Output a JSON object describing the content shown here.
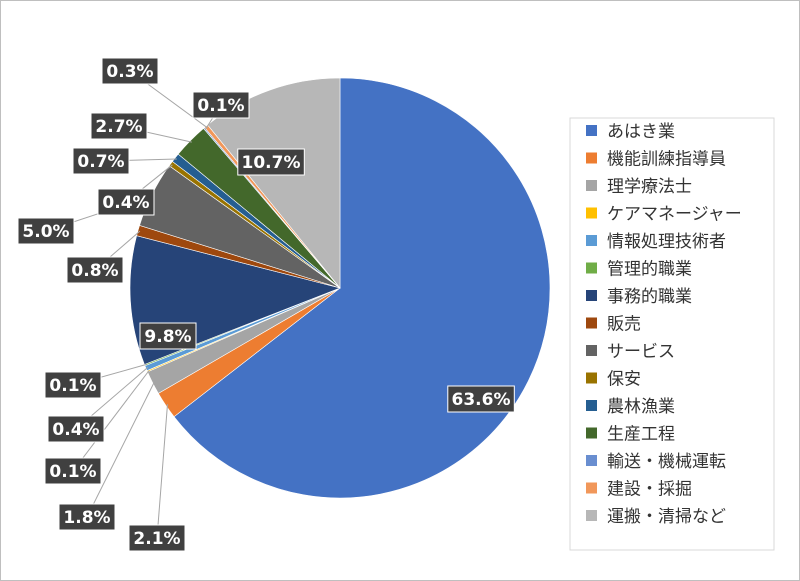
{
  "chart_data": {
    "type": "pie",
    "title": "",
    "legend_position": "right",
    "start_angle_deg": 0,
    "direction": "clockwise",
    "slices": [
      {
        "label": "あはき業",
        "value": 63.6,
        "display": "63.6%",
        "color": "#4472c4"
      },
      {
        "label": "機能訓練指導員",
        "value": 2.1,
        "display": "2.1%",
        "color": "#ed7d31"
      },
      {
        "label": "理学療法士",
        "value": 1.8,
        "display": "1.8%",
        "color": "#a5a5a5"
      },
      {
        "label": "ケアマネージャー",
        "value": 0.1,
        "display": "0.1%",
        "color": "#ffc000"
      },
      {
        "label": "情報処理技術者",
        "value": 0.4,
        "display": "0.4%",
        "color": "#5b9bd5"
      },
      {
        "label": "管理的職業",
        "value": 0.1,
        "display": "0.1%",
        "color": "#70ad47"
      },
      {
        "label": "事務的職業",
        "value": 9.8,
        "display": "9.8%",
        "color": "#264478"
      },
      {
        "label": "販売",
        "value": 0.8,
        "display": "0.8%",
        "color": "#9e480e"
      },
      {
        "label": "サービス",
        "value": 5.0,
        "display": "5.0%",
        "color": "#636363"
      },
      {
        "label": "保安",
        "value": 0.4,
        "display": "0.4%",
        "color": "#997300"
      },
      {
        "label": "農林漁業",
        "value": 0.7,
        "display": "0.7%",
        "color": "#255e91"
      },
      {
        "label": "生産工程",
        "value": 2.7,
        "display": "2.7%",
        "color": "#43682b"
      },
      {
        "label": "輸送・機械運転",
        "value": 0.1,
        "display": "0.1%",
        "color": "#698ed0"
      },
      {
        "label": "建設・採掘",
        "value": 0.3,
        "display": "0.3%",
        "color": "#f1975a"
      },
      {
        "label": "運搬・清掃など",
        "value": 10.7,
        "display": "10.7%",
        "color": "#b7b7b7"
      }
    ]
  }
}
